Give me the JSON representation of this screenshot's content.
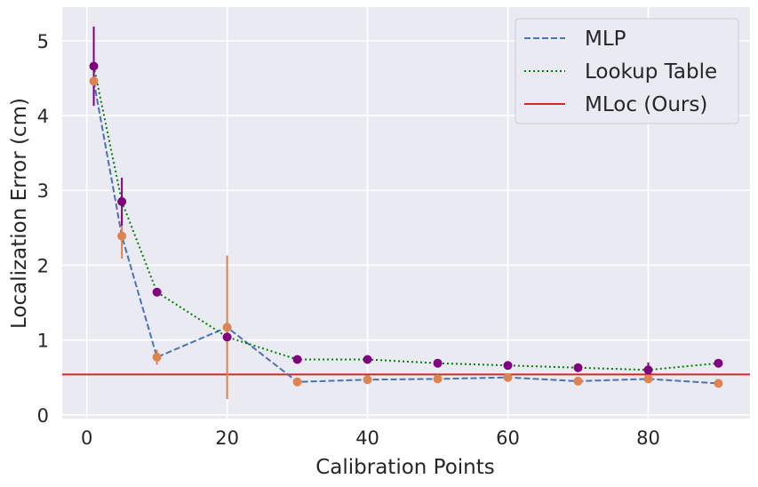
{
  "chart_data": {
    "type": "line",
    "title": "",
    "xlabel": "Calibration Points",
    "ylabel": "Localization Error (cm)",
    "xlim": [
      -3.5,
      94.5
    ],
    "ylim": [
      -0.05,
      5.45
    ],
    "x_ticks": [
      0,
      20,
      40,
      60,
      80
    ],
    "y_ticks": [
      0,
      1,
      2,
      3,
      4,
      5
    ],
    "grid": true,
    "background": "#eaeaf2",
    "legend_position": "top-right",
    "x": [
      1,
      5,
      10,
      20,
      30,
      40,
      50,
      60,
      70,
      80,
      90
    ],
    "series": [
      {
        "name": "MLP",
        "style": "dashed",
        "color": "#4c72b0",
        "marker_color": "#dd8452",
        "values": [
          4.46,
          2.39,
          0.77,
          1.17,
          0.44,
          0.47,
          0.48,
          0.5,
          0.45,
          0.48,
          0.42
        ],
        "errors": [
          0.1,
          0.3,
          0.1,
          0.96,
          0.02,
          0.02,
          0.02,
          0.02,
          0.02,
          0.02,
          0.02
        ]
      },
      {
        "name": "Lookup Table",
        "style": "dotted",
        "color": "#008000",
        "marker_color": "#800080",
        "values": [
          4.66,
          2.85,
          1.64,
          1.04,
          0.74,
          0.74,
          0.69,
          0.66,
          0.63,
          0.6,
          0.69
        ],
        "errors": [
          0.53,
          0.32,
          0.02,
          0.03,
          0.02,
          0.02,
          0.02,
          0.02,
          0.02,
          0.1,
          0.02
        ]
      },
      {
        "name": "MLoc (Ours)",
        "style": "solid",
        "color": "#d62728",
        "type": "hline",
        "value": 0.54
      }
    ]
  }
}
